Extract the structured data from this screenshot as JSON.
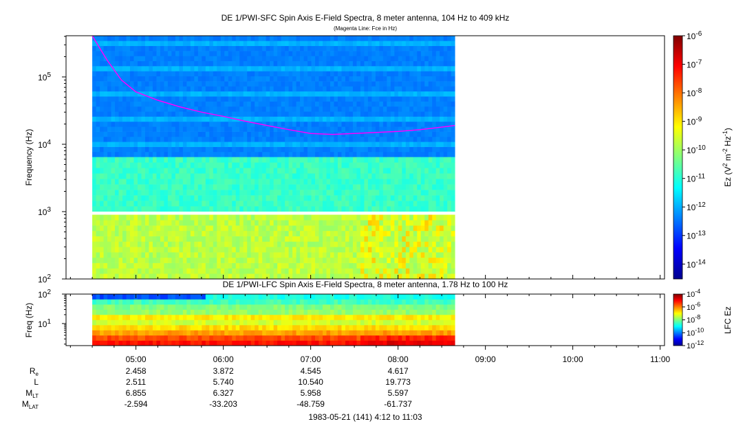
{
  "chart_data": [
    {
      "type": "heatmap",
      "title": "DE 1/PWI-SFC  Spin Axis E-Field Spectra, 8 meter antenna, 104 Hz to 409 kHz",
      "subtitle": "(Magenta Line: Fce in Hz)",
      "ylabel": "Frequency (Hz)",
      "y_scale": "log",
      "ylim": [
        100,
        409000
      ],
      "y_ticks": [
        {
          "value": 100,
          "base": "10",
          "exp": "2"
        },
        {
          "value": 1000,
          "base": "10",
          "exp": "3"
        },
        {
          "value": 10000,
          "base": "10",
          "exp": "4"
        },
        {
          "value": 100000,
          "base": "10",
          "exp": "5"
        }
      ],
      "colorbar": {
        "label_parts": [
          {
            "text": "Ez (V",
            "sup": false
          },
          {
            "text": "2",
            "sup": true
          },
          {
            "text": " m",
            "sup": false
          },
          {
            "text": "-2",
            "sup": true
          },
          {
            "text": " Hz",
            "sup": false
          },
          {
            "text": "-1",
            "sup": true
          },
          {
            "text": ")",
            "sup": false
          }
        ],
        "scale": "log",
        "range": [
          3e-15,
          1e-06
        ],
        "ticks": [
          {
            "value": 1e-06,
            "base": "10",
            "exp": "-6"
          },
          {
            "value": 1e-07,
            "base": "10",
            "exp": "-7"
          },
          {
            "value": 1e-08,
            "base": "10",
            "exp": "-8"
          },
          {
            "value": 1e-09,
            "base": "10",
            "exp": "-9"
          },
          {
            "value": 1e-10,
            "base": "10",
            "exp": "-10"
          },
          {
            "value": 1e-11,
            "base": "10",
            "exp": "-11"
          },
          {
            "value": 1e-12,
            "base": "10",
            "exp": "-12"
          },
          {
            "value": 1e-13,
            "base": "10",
            "exp": "-13"
          },
          {
            "value": 1e-14,
            "base": "10",
            "exp": "-14"
          }
        ]
      },
      "data_coverage": {
        "start": "04:30",
        "end": "08:39"
      },
      "fce_line": {
        "color": "#ff00ff",
        "points": [
          [
            "04:30",
            409000
          ],
          [
            "04:40",
            180000
          ],
          [
            "04:50",
            90000
          ],
          [
            "05:00",
            60000
          ],
          [
            "05:15",
            45000
          ],
          [
            "05:30",
            36000
          ],
          [
            "05:45",
            30000
          ],
          [
            "06:00",
            26000
          ],
          [
            "06:15",
            22000
          ],
          [
            "06:30",
            19000
          ],
          [
            "06:45",
            16500
          ],
          [
            "07:00",
            14500
          ],
          [
            "07:15",
            14000
          ],
          [
            "07:30",
            14500
          ],
          [
            "07:45",
            15000
          ],
          [
            "08:00",
            15500
          ],
          [
            "08:15",
            16500
          ],
          [
            "08:30",
            18000
          ],
          [
            "08:39",
            19000
          ]
        ]
      }
    },
    {
      "type": "heatmap",
      "title": "DE 1/PWI-LFC  Spin Axis E-Field Spectra, 8 meter antenna, 1.78 Hz to 100 Hz",
      "ylabel": "Freq (Hz)",
      "y_scale": "log",
      "ylim": [
        1.78,
        100
      ],
      "y_ticks": [
        {
          "value": 10,
          "base": "10",
          "exp": "1"
        },
        {
          "value": 100,
          "base": "10",
          "exp": "2"
        }
      ],
      "colorbar": {
        "label": "LFC Ez",
        "scale": "log",
        "range": [
          1e-12,
          0.0001
        ],
        "ticks": [
          {
            "value": 0.0001,
            "base": "10",
            "exp": "-4"
          },
          {
            "value": 1e-06,
            "base": "10",
            "exp": "-6"
          },
          {
            "value": 1e-08,
            "base": "10",
            "exp": "-8"
          },
          {
            "value": 1e-10,
            "base": "10",
            "exp": "-10"
          },
          {
            "value": 1e-12,
            "base": "10",
            "exp": "-12"
          }
        ]
      },
      "data_coverage": {
        "start": "04:30",
        "end": "08:39"
      }
    }
  ],
  "time_axis": {
    "start": "04:12",
    "end": "11:03",
    "ticks": [
      "05:00",
      "06:00",
      "07:00",
      "08:00",
      "09:00",
      "10:00",
      "11:00"
    ],
    "caption": "1983-05-21 (141) 4:12 to 11:03"
  },
  "ephemeris": {
    "rows": [
      {
        "label": "R",
        "sub": "e",
        "values": [
          "2.458",
          "3.872",
          "4.545",
          "4.617"
        ]
      },
      {
        "label": "L",
        "sub": "",
        "values": [
          "2.511",
          "5.740",
          "10.540",
          "19.773"
        ]
      },
      {
        "label": "M",
        "sub": "LT",
        "values": [
          "6.855",
          "6.327",
          "5.958",
          "5.597"
        ]
      },
      {
        "label": "M",
        "sub": "LAT",
        "values": [
          "-2.594",
          "-33.203",
          "-48.759",
          "-61.737"
        ]
      }
    ]
  }
}
